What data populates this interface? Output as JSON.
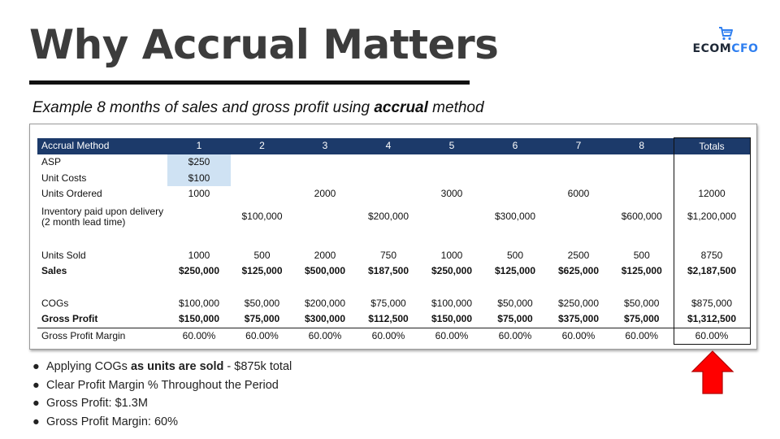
{
  "title": "Why Accrual Matters",
  "logo": {
    "part1": "ECOM",
    "part2": "CFO",
    "icon": "shopping-cart-icon",
    "color_brand": "#2f7ff0"
  },
  "subtitle": {
    "prefix": "Example 8 months of sales and gross profit using ",
    "emphasis": "accrual",
    "suffix": " method"
  },
  "table": {
    "header": [
      "Accrual Method",
      "1",
      "2",
      "3",
      "4",
      "5",
      "6",
      "7",
      "8",
      "Totals"
    ],
    "rows": [
      [
        "ASP",
        "$250",
        "",
        "",
        "",
        "",
        "",
        "",
        "",
        ""
      ],
      [
        "Unit Costs",
        "$100",
        "",
        "",
        "",
        "",
        "",
        "",
        "",
        ""
      ],
      [
        "Units Ordered",
        "1000",
        "",
        "2000",
        "",
        "3000",
        "",
        "6000",
        "",
        "12000"
      ],
      [
        "Inventory paid upon delivery (2 month lead time)",
        "",
        "$100,000",
        "",
        "$200,000",
        "",
        "$300,000",
        "",
        "$600,000",
        "$1,200,000"
      ],
      [
        "",
        "",
        "",
        "",
        "",
        "",
        "",
        "",
        "",
        ""
      ],
      [
        "Units Sold",
        "1000",
        "500",
        "2000",
        "750",
        "1000",
        "500",
        "2500",
        "500",
        "8750"
      ],
      [
        "Sales",
        "$250,000",
        "$125,000",
        "$500,000",
        "$187,500",
        "$250,000",
        "$125,000",
        "$625,000",
        "$125,000",
        "$2,187,500"
      ],
      [
        "",
        "",
        "",
        "",
        "",
        "",
        "",
        "",
        "",
        ""
      ],
      [
        "COGs",
        "$100,000",
        "$50,000",
        "$200,000",
        "$75,000",
        "$100,000",
        "$50,000",
        "$250,000",
        "$50,000",
        "$875,000"
      ],
      [
        "Gross Profit",
        "$150,000",
        "$75,000",
        "$300,000",
        "$112,500",
        "$150,000",
        "$75,000",
        "$375,000",
        "$75,000",
        "$1,312,500"
      ],
      [
        "Gross Profit Margin",
        "60.00%",
        "60.00%",
        "60.00%",
        "60.00%",
        "60.00%",
        "60.00%",
        "60.00%",
        "60.00%",
        "60.00%"
      ]
    ],
    "colors": {
      "header_bg": "#1c3a6a",
      "highlight_bg": "#cfe2f3"
    }
  },
  "bullets": [
    {
      "pre": "Applying COGs ",
      "bold": "as units are sold",
      "post": " - $875k total"
    },
    {
      "pre": "Clear Profit Margin % Throughout the Period",
      "bold": "",
      "post": ""
    },
    {
      "pre": "Gross Profit: $1.3M",
      "bold": "",
      "post": ""
    },
    {
      "pre": "Gross Profit Margin: 60%",
      "bold": "",
      "post": ""
    }
  ],
  "arrow": {
    "icon": "up-arrow-icon",
    "color": "#ff0000"
  }
}
